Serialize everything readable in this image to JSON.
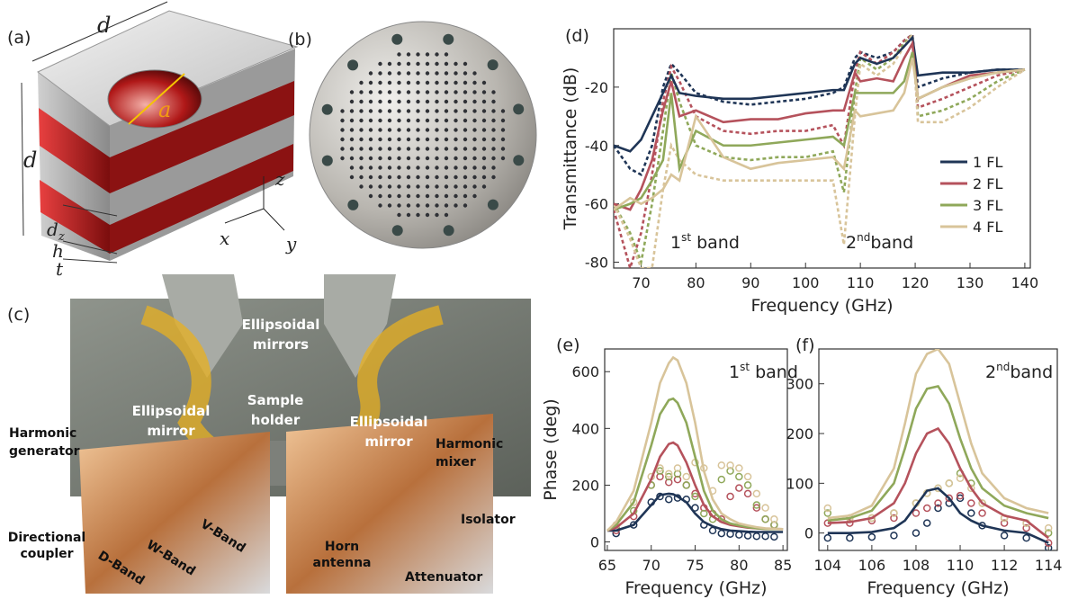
{
  "panel_a": {
    "label": "(a)",
    "top_d": "d",
    "hole": "a",
    "side_d": "d",
    "axis_z": "z",
    "axis_x": "x",
    "axis_y": "y",
    "dz": {
      "base": "d",
      "sub": "z"
    },
    "h": "h",
    "t": "t"
  },
  "panel_b": {
    "label": "(b)"
  },
  "panel_c": {
    "label": "(c)",
    "labels": [
      {
        "lines": [
          "Ellipsoidal",
          "mirrors"
        ]
      },
      {
        "lines": [
          "Sample",
          "holder"
        ]
      },
      {
        "lines": [
          "Ellipsoidal",
          "mirror"
        ]
      },
      {
        "lines": [
          "Ellipsoidal",
          "mirror"
        ]
      },
      {
        "lines": [
          "Harmonic",
          "generator"
        ]
      },
      {
        "lines": [
          "Harmonic",
          "mixer"
        ]
      },
      {
        "lines": [
          "Directional",
          "coupler"
        ]
      },
      {
        "lines": [
          "V-Band"
        ]
      },
      {
        "lines": [
          "W-Band"
        ]
      },
      {
        "lines": [
          "D-Band"
        ]
      },
      {
        "lines": [
          "Isolator"
        ]
      },
      {
        "lines": [
          "Horn",
          "antenna"
        ]
      },
      {
        "lines": [
          "Attenuator"
        ]
      }
    ]
  },
  "chart_data": [
    {
      "type": "line",
      "panel_label": "(d)",
      "x_label": "Frequency (GHz)",
      "y_label": "Transmittance (dB)",
      "xlim": [
        65,
        141
      ],
      "ylim": [
        -82,
        0
      ],
      "xticks": [
        70,
        80,
        90,
        100,
        110,
        120,
        130,
        140
      ],
      "yticks": [
        -20,
        -40,
        -60,
        -80
      ],
      "legend": "lower right",
      "annotations": [
        {
          "base": "1",
          "sup": "st",
          "rest": " band"
        },
        {
          "base": "2",
          "sup": "nd",
          "rest": "band"
        }
      ],
      "x": [
        65,
        68,
        70,
        72,
        74,
        75.5,
        77,
        80,
        85,
        90,
        95,
        100,
        105,
        107,
        109,
        110,
        113,
        116,
        118,
        119.5,
        120.5,
        125,
        130,
        135,
        140
      ],
      "series": [
        {
          "name": "1 FL",
          "color": "#1f3556",
          "values": [
            -40,
            -42,
            -38,
            -30,
            -22,
            -16,
            -22,
            -23,
            -24,
            -24,
            -23,
            -22,
            -21,
            -21,
            -12,
            -10,
            -12,
            -10,
            -6,
            -3,
            -16,
            -15,
            -15,
            -14,
            -14
          ],
          "sim_values": [
            -40,
            -48,
            -50,
            -40,
            -20,
            -12,
            -15,
            -22,
            -25,
            -26,
            -25,
            -24,
            -22,
            -20,
            -10,
            -8,
            -10,
            -8,
            -4,
            -2,
            -20,
            -17,
            -15,
            -14,
            -14
          ]
        },
        {
          "name": "2 FL",
          "color": "#b5525c",
          "values": [
            -60,
            -62,
            -55,
            -45,
            -28,
            -18,
            -30,
            -28,
            -32,
            -31,
            -31,
            -29,
            -28,
            -28,
            -15,
            -18,
            -17,
            -18,
            -10,
            -5,
            -24,
            -20,
            -16,
            -15,
            -14
          ],
          "sim_values": [
            -62,
            -82,
            -70,
            -50,
            -25,
            -13,
            -18,
            -30,
            -35,
            -36,
            -35,
            -35,
            -33,
            -40,
            -15,
            -8,
            -12,
            -8,
            -4,
            -2,
            -27,
            -24,
            -20,
            -16,
            -14
          ]
        },
        {
          "name": "3 FL",
          "color": "#8fa85a",
          "values": [
            -62,
            -60,
            -58,
            -52,
            -45,
            -22,
            -48,
            -35,
            -40,
            -40,
            -39,
            -38,
            -37,
            -40,
            -22,
            -22,
            -22,
            -22,
            -18,
            -8,
            -24,
            -20,
            -17,
            -15,
            -14
          ],
          "sim_values": [
            -60,
            -70,
            -80,
            -60,
            -35,
            -15,
            -25,
            -40,
            -44,
            -45,
            -44,
            -44,
            -42,
            -56,
            -22,
            -10,
            -14,
            -10,
            -5,
            -2,
            -30,
            -28,
            -24,
            -18,
            -14
          ]
        },
        {
          "name": "4 FL",
          "color": "#d8c49a",
          "values": [
            -62,
            -58,
            -60,
            -58,
            -55,
            -50,
            -52,
            -30,
            -44,
            -48,
            -46,
            -45,
            -44,
            -48,
            -28,
            -30,
            -29,
            -28,
            -22,
            -10,
            -24,
            -20,
            -17,
            -15,
            -14
          ],
          "sim_values": [
            -60,
            -72,
            -82,
            -82,
            -55,
            -40,
            -45,
            -50,
            -52,
            -52,
            -52,
            -52,
            -52,
            -74,
            -30,
            -12,
            -16,
            -12,
            -6,
            -2,
            -32,
            -32,
            -27,
            -20,
            -14
          ]
        }
      ]
    },
    {
      "type": "line",
      "panel_label": "(e)",
      "x_label": "Frequency (GHz)",
      "y_label": "Phase (deg)",
      "xlim": [
        64.7,
        85.5
      ],
      "ylim": [
        -30,
        680
      ],
      "xticks": [
        65,
        70,
        75,
        80,
        85
      ],
      "yticks": [
        0,
        200,
        400,
        600
      ],
      "annotations": [
        {
          "base": "1",
          "sup": "st",
          "rest": " band"
        }
      ],
      "x": [
        65,
        66,
        68,
        70,
        71,
        72,
        72.5,
        73,
        74,
        75,
        76,
        77,
        78,
        79,
        80,
        81,
        82,
        83,
        85
      ],
      "measured_x": [
        66,
        68,
        70,
        71,
        72,
        73,
        74,
        75,
        76,
        77,
        78,
        79,
        80,
        81,
        82,
        83,
        84
      ],
      "series": [
        {
          "color": "#1f3556",
          "values": [
            40,
            40,
            60,
            130,
            165,
            170,
            168,
            160,
            140,
            100,
            70,
            55,
            45,
            40,
            38,
            36,
            35,
            35,
            35
          ],
          "measured_values": [
            30,
            60,
            140,
            160,
            150,
            155,
            150,
            120,
            60,
            40,
            30,
            28,
            25,
            22,
            20,
            20,
            18
          ]
        },
        {
          "color": "#b5525c",
          "values": [
            40,
            50,
            100,
            220,
            300,
            345,
            350,
            340,
            280,
            200,
            130,
            90,
            70,
            60,
            55,
            50,
            48,
            46,
            45
          ],
          "measured_values": [
            40,
            90,
            200,
            230,
            210,
            220,
            200,
            170,
            120,
            100,
            80,
            160,
            190,
            170,
            120,
            80,
            60
          ]
        },
        {
          "color": "#8fa85a",
          "values": [
            40,
            60,
            140,
            340,
            450,
            500,
            505,
            490,
            420,
            300,
            180,
            110,
            80,
            65,
            58,
            52,
            48,
            46,
            45
          ],
          "measured_values": [
            50,
            110,
            200,
            250,
            230,
            240,
            200,
            160,
            100,
            80,
            220,
            250,
            230,
            200,
            130,
            80,
            60
          ]
        },
        {
          "color": "#d8c49a",
          "values": [
            40,
            70,
            180,
            420,
            560,
            630,
            650,
            640,
            560,
            420,
            250,
            150,
            100,
            80,
            65,
            58,
            52,
            48,
            45
          ],
          "measured_values": [
            60,
            140,
            230,
            260,
            240,
            260,
            230,
            280,
            260,
            180,
            270,
            270,
            260,
            230,
            170,
            120,
            80
          ]
        }
      ]
    },
    {
      "type": "line",
      "panel_label": "(f)",
      "x_label": "Frequency (GHz)",
      "xlim": [
        103.6,
        114.4
      ],
      "ylim": [
        -35,
        370
      ],
      "xticks": [
        104,
        106,
        108,
        110,
        112,
        114
      ],
      "yticks": [
        0,
        100,
        200,
        300
      ],
      "annotations": [
        {
          "base": "2",
          "sup": "nd",
          "rest": "band"
        }
      ],
      "x": [
        104,
        105,
        106,
        107,
        107.5,
        108,
        108.5,
        109,
        109.5,
        110,
        110.5,
        111,
        112,
        113,
        114
      ],
      "measured_x": [
        104,
        105,
        106,
        107,
        108,
        108.5,
        109,
        109.5,
        110,
        110.5,
        111,
        112,
        113,
        114
      ],
      "series": [
        {
          "color": "#1f3556",
          "values": [
            0,
            0,
            2,
            10,
            25,
            55,
            85,
            90,
            70,
            40,
            25,
            15,
            5,
            0,
            -20
          ],
          "measured_values": [
            -10,
            -10,
            -8,
            -5,
            0,
            20,
            50,
            60,
            70,
            40,
            15,
            -5,
            -10,
            -30
          ]
        },
        {
          "color": "#b5525c",
          "values": [
            20,
            22,
            30,
            60,
            100,
            160,
            200,
            210,
            180,
            130,
            90,
            60,
            35,
            25,
            -10
          ],
          "measured_values": [
            20,
            20,
            25,
            30,
            40,
            50,
            60,
            70,
            75,
            60,
            40,
            20,
            10,
            -20
          ]
        },
        {
          "color": "#8fa85a",
          "values": [
            25,
            30,
            45,
            100,
            170,
            250,
            290,
            295,
            260,
            190,
            130,
            90,
            55,
            40,
            30
          ],
          "measured_values": [
            40,
            30,
            30,
            40,
            60,
            80,
            90,
            100,
            120,
            100,
            60,
            30,
            20,
            0
          ]
        },
        {
          "color": "#d8c49a",
          "values": [
            30,
            35,
            55,
            130,
            220,
            320,
            360,
            370,
            340,
            260,
            180,
            120,
            70,
            50,
            40
          ],
          "measured_values": [
            50,
            30,
            30,
            40,
            60,
            80,
            90,
            100,
            110,
            90,
            60,
            30,
            20,
            10
          ]
        }
      ]
    }
  ]
}
